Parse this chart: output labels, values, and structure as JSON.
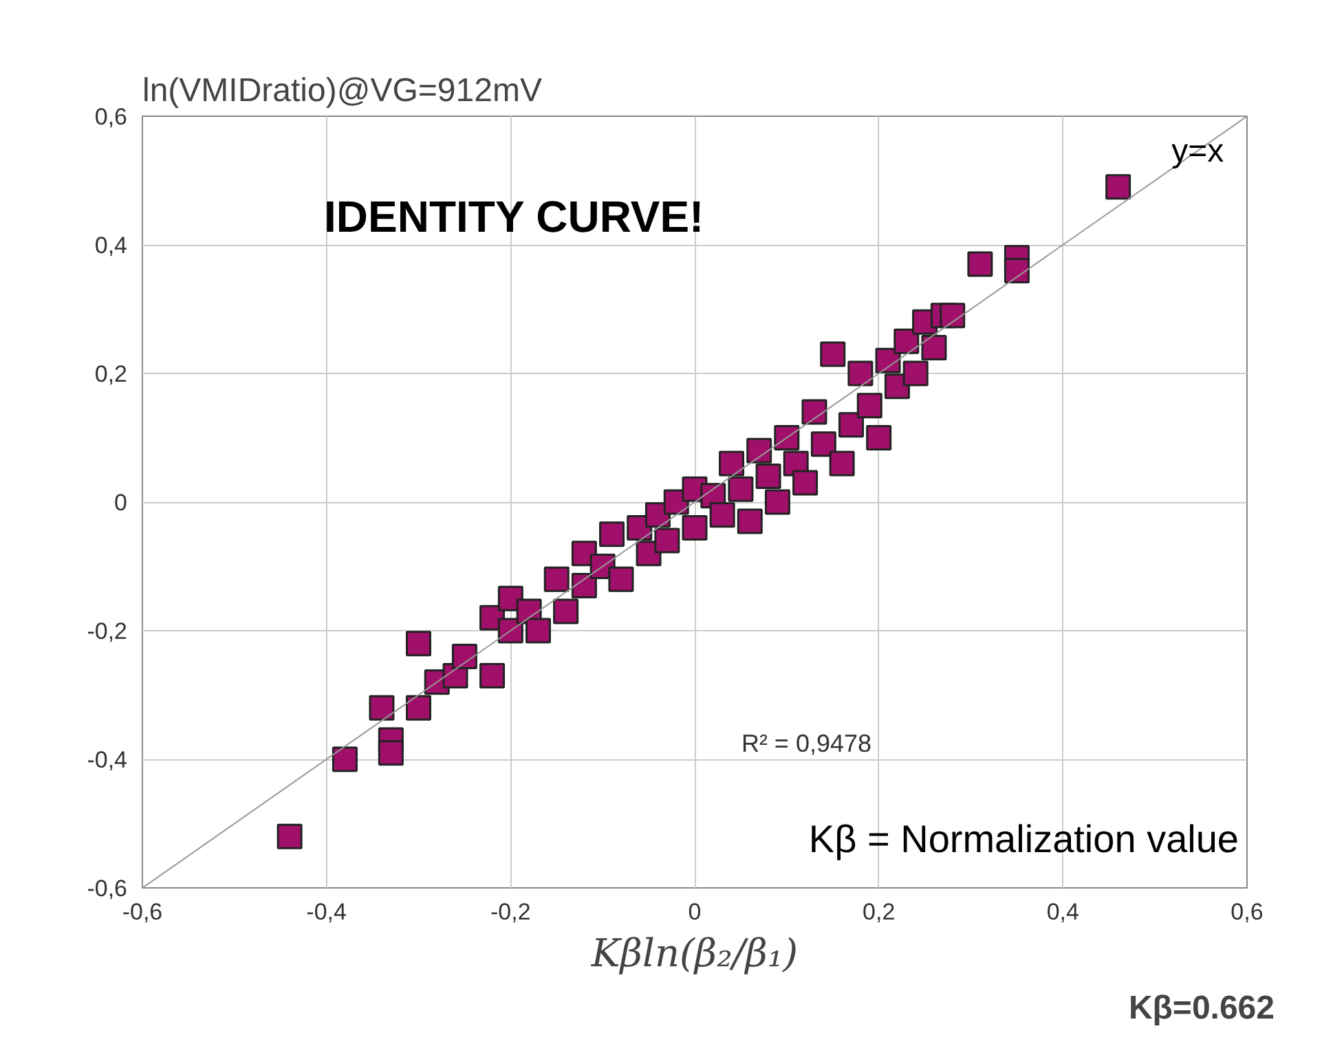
{
  "chart_data": {
    "type": "scatter",
    "ylabel": "ln(VMIDratio)@VG=912mV",
    "xlabel": "Kβln(β₂/β₁)",
    "xlim": [
      -0.6,
      0.6
    ],
    "ylim": [
      -0.6,
      0.6
    ],
    "xticks": [
      {
        "value": -0.6,
        "label": "-0,6"
      },
      {
        "value": -0.4,
        "label": "-0,4"
      },
      {
        "value": -0.2,
        "label": "-0,2"
      },
      0,
      {
        "value": 0.2,
        "label": "0,2"
      },
      {
        "value": 0.4,
        "label": "0,4"
      },
      {
        "value": 0.6,
        "label": "0,6"
      }
    ],
    "yticks": [
      {
        "value": -0.6,
        "label": "-0,6"
      },
      {
        "value": -0.4,
        "label": "-0,4"
      },
      {
        "value": -0.2,
        "label": "-0,2"
      },
      0,
      {
        "value": 0.2,
        "label": "0,2"
      },
      {
        "value": 0.4,
        "label": "0,4"
      },
      {
        "value": 0.6,
        "label": "0,6"
      }
    ],
    "grid": true,
    "marker": "square",
    "series": [
      {
        "color": "#a0106a",
        "x": [
          -0.44,
          -0.38,
          -0.34,
          -0.33,
          -0.33,
          -0.3,
          -0.3,
          -0.28,
          -0.26,
          -0.25,
          -0.22,
          -0.22,
          -0.2,
          -0.2,
          -0.18,
          -0.17,
          -0.15,
          -0.14,
          -0.12,
          -0.12,
          -0.1,
          -0.09,
          -0.08,
          -0.06,
          -0.05,
          -0.04,
          -0.03,
          -0.02,
          0.0,
          0.0,
          0.02,
          0.03,
          0.04,
          0.05,
          0.06,
          0.07,
          0.08,
          0.09,
          0.1,
          0.11,
          0.12,
          0.13,
          0.14,
          0.16,
          0.15,
          0.17,
          0.18,
          0.19,
          0.2,
          0.21,
          0.22,
          0.23,
          0.24,
          0.25,
          0.26,
          0.27,
          0.28,
          0.31,
          0.35,
          0.35,
          0.46
        ],
        "values": [
          -0.52,
          -0.4,
          -0.32,
          -0.37,
          -0.39,
          -0.22,
          -0.32,
          -0.28,
          -0.27,
          -0.24,
          -0.27,
          -0.18,
          -0.15,
          -0.2,
          -0.17,
          -0.2,
          -0.12,
          -0.17,
          -0.08,
          -0.13,
          -0.1,
          -0.05,
          -0.12,
          -0.04,
          -0.08,
          -0.02,
          -0.06,
          0.0,
          0.02,
          -0.04,
          0.01,
          -0.02,
          0.06,
          0.02,
          -0.03,
          0.08,
          0.04,
          0.0,
          0.1,
          0.06,
          0.03,
          0.14,
          0.09,
          0.06,
          0.23,
          0.12,
          0.2,
          0.15,
          0.1,
          0.22,
          0.18,
          0.25,
          0.2,
          0.28,
          0.24,
          0.29,
          0.29,
          0.37,
          0.38,
          0.36,
          0.49
        ]
      },
      {
        "type": "line",
        "color": "#999999",
        "marker": "none",
        "x": [
          -0.6,
          0.6
        ],
        "values": [
          -0.6,
          0.6
        ]
      }
    ],
    "annotations": [
      "IDENTITY CURVE!",
      {
        "text": "y=x",
        "x": 0.5,
        "y": 0.5
      },
      "R² = 0,9478",
      "Kβ = Normalization value",
      "Kβ=0.662"
    ]
  }
}
